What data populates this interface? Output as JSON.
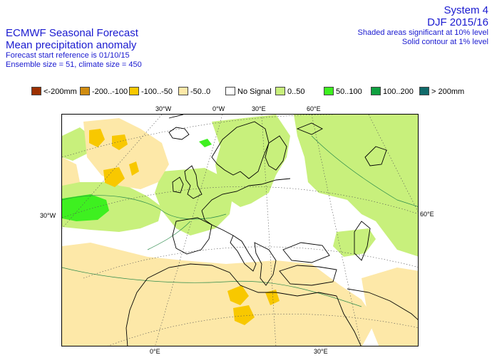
{
  "header": {
    "left_line1": "ECMWF Seasonal Forecast",
    "left_line2": "Mean precipitation anomaly",
    "left_line3": "Forecast start reference is 01/10/15",
    "left_line4": "Ensemble size = 51, climate size = 450",
    "right_line1": "System 4",
    "right_line2": "DJF 2015/16",
    "right_line3": "Shaded areas significant at 10% level",
    "right_line4": "Solid contour at 1% level"
  },
  "legend": [
    {
      "label": "<-200mm",
      "color": "#9c3000"
    },
    {
      "label": "-200..-100",
      "color": "#d08c10"
    },
    {
      "label": "-100..-50",
      "color": "#f8c800"
    },
    {
      "label": "-50..0",
      "color": "#fde8a8"
    },
    {
      "label": "No Signal",
      "color": "#ffffff"
    },
    {
      "label": "0..50",
      "color": "#c8f07c"
    },
    {
      "label": "50..100",
      "color": "#3ef020"
    },
    {
      "label": "100..200",
      "color": "#10a040"
    },
    {
      "label": "> 200mm",
      "color": "#106a6a"
    }
  ],
  "grid_labels": {
    "top_30w": "30°W",
    "top_0w": "0°W",
    "top_30e": "30°E",
    "top_60e": "60°E",
    "left_30w": "30°W",
    "right_60e": "60°E",
    "bottom_0e": "0°E",
    "bottom_30e": "30°E"
  }
}
